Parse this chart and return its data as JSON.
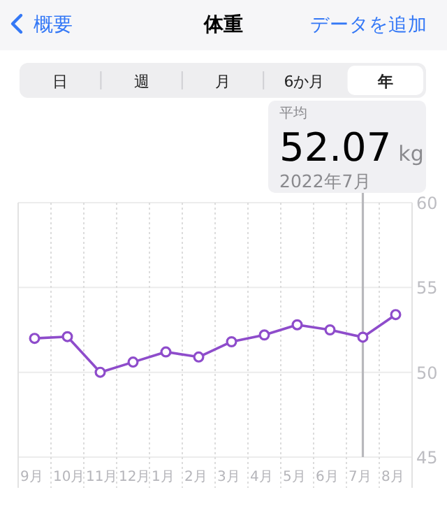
{
  "chart_data": {
    "type": "line",
    "title": "体重",
    "ylabel": "kg",
    "categories": [
      "9月",
      "10月",
      "11月",
      "12月",
      "1月",
      "2月",
      "3月",
      "4月",
      "5月",
      "6月",
      "7月",
      "8月"
    ],
    "series": [
      {
        "color": "#8e4ccb",
        "values": [
          52.0,
          52.1,
          50.0,
          50.6,
          51.2,
          50.9,
          51.8,
          52.2,
          52.8,
          52.5,
          52.07,
          53.4
        ]
      }
    ],
    "ylim": [
      45,
      60
    ],
    "yticks": [
      45,
      50,
      55,
      60
    ],
    "grid": true,
    "marker": "circle",
    "line_style": "solid",
    "ref_lines": [
      {
        "axis": "x",
        "value": "7月",
        "color": "#b8b8bc"
      }
    ],
    "annotations": [
      "概要",
      "データを追加",
      "日",
      "週",
      "月",
      "6か月",
      "年",
      "平均",
      "2022年7月",
      "52.07"
    ]
  }
}
